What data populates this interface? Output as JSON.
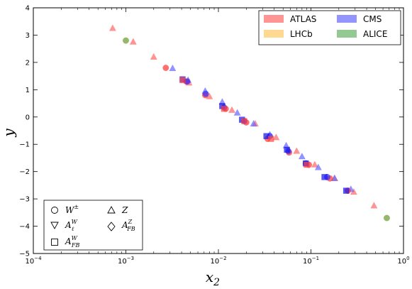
{
  "chart_data": {
    "type": "scatter",
    "xlabel": "x",
    "xlabel_sub": "2",
    "ylabel": "y",
    "xscale": "log",
    "xlim": [
      0.0001,
      1
    ],
    "ylim": [
      -5,
      4
    ],
    "yticks": [
      "−5",
      "−4",
      "−3",
      "−2",
      "−1",
      "0",
      "1",
      "2",
      "3",
      "4"
    ],
    "xticks": [
      {
        "base": "10",
        "exp": "−4"
      },
      {
        "base": "10",
        "exp": "−3"
      },
      {
        "base": "10",
        "exp": "−2"
      },
      {
        "base": "10",
        "exp": "−1"
      },
      {
        "base": "10",
        "exp": "0"
      }
    ],
    "grid": false,
    "experiments_legend": {
      "placement": "top-right",
      "entries": [
        {
          "label": "ATLAS",
          "color": "#ff6666"
        },
        {
          "label": "CMS",
          "color": "#6666ff"
        },
        {
          "label": "LHCb",
          "color": "#ffd27f"
        },
        {
          "label": "ALICE",
          "color": "#66b266"
        }
      ]
    },
    "observables_legend": {
      "placement": "bottom-left",
      "entries": [
        {
          "marker": "circle",
          "text": "W",
          "sup": "±",
          "sub": ""
        },
        {
          "marker": "triangle-up",
          "text": "Z",
          "sup": "",
          "sub": ""
        },
        {
          "marker": "triangle-down",
          "text": "A",
          "sup": "W",
          "sub": "ℓ"
        },
        {
          "marker": "diamond",
          "text": "A",
          "sup": "Z",
          "sub": "FB"
        },
        {
          "marker": "square",
          "text": "A",
          "sup": "W",
          "sub": "FB"
        }
      ]
    },
    "series": [
      {
        "experiment": "ATLAS",
        "marker": "triangle-up",
        "color": "#ff6666",
        "points": [
          [
            0.00072,
            3.25
          ],
          [
            0.0012,
            2.75
          ],
          [
            0.002,
            2.2
          ],
          [
            0.0048,
            1.25
          ],
          [
            0.008,
            0.75
          ],
          [
            0.014,
            0.25
          ],
          [
            0.025,
            -0.25
          ],
          [
            0.042,
            -0.75
          ],
          [
            0.07,
            -1.25
          ],
          [
            0.11,
            -1.75
          ],
          [
            0.18,
            -2.25
          ],
          [
            0.29,
            -2.75
          ],
          [
            0.48,
            -3.25
          ]
        ]
      },
      {
        "experiment": "CMS",
        "marker": "triangle-up",
        "color": "#6666ff",
        "points": [
          [
            0.0032,
            1.78
          ],
          [
            0.0047,
            1.35
          ],
          [
            0.0072,
            0.95
          ],
          [
            0.011,
            0.55
          ],
          [
            0.016,
            0.15
          ],
          [
            0.024,
            -0.25
          ],
          [
            0.036,
            -0.65
          ],
          [
            0.054,
            -1.05
          ],
          [
            0.08,
            -1.45
          ],
          [
            0.12,
            -1.85
          ],
          [
            0.18,
            -2.25
          ],
          [
            0.27,
            -2.65
          ]
        ]
      },
      {
        "experiment": "ATLAS",
        "marker": "circle",
        "color": "#ff3333",
        "points": [
          [
            0.0027,
            1.8
          ],
          [
            0.0045,
            1.3
          ],
          [
            0.0072,
            0.8
          ],
          [
            0.012,
            0.3
          ],
          [
            0.02,
            -0.2
          ],
          [
            0.034,
            -0.8
          ],
          [
            0.058,
            -1.3
          ],
          [
            0.095,
            -1.75
          ],
          [
            0.16,
            -2.25
          ],
          [
            0.25,
            -2.7
          ]
        ]
      },
      {
        "experiment": "CMS",
        "marker": "circle",
        "color": "#3333ff",
        "points": [
          [
            0.0046,
            1.3
          ],
          [
            0.0073,
            0.85
          ],
          [
            0.0115,
            0.35
          ],
          [
            0.019,
            -0.15
          ],
          [
            0.036,
            -0.7
          ],
          [
            0.057,
            -1.25
          ],
          [
            0.088,
            -1.7
          ],
          [
            0.15,
            -2.2
          ]
        ]
      },
      {
        "experiment": "CMS",
        "marker": "square",
        "color": "#1111ee",
        "points": [
          [
            0.0041,
            1.38
          ],
          [
            0.011,
            0.4
          ],
          [
            0.018,
            -0.1
          ],
          [
            0.033,
            -0.7
          ],
          [
            0.055,
            -1.2
          ],
          [
            0.088,
            -1.7
          ],
          [
            0.14,
            -2.2
          ],
          [
            0.24,
            -2.7
          ]
        ]
      },
      {
        "experiment": "ATLAS",
        "marker": "square",
        "color": "#ff4444",
        "points": [
          [
            0.0041,
            1.35
          ],
          [
            0.0115,
            0.3
          ],
          [
            0.019,
            -0.15
          ],
          [
            0.037,
            -0.8
          ],
          [
            0.09,
            -1.75
          ]
        ]
      },
      {
        "experiment": "LHCb",
        "marker": "circle",
        "color": "#ffb347",
        "points": [
          [
            0.001,
            2.8
          ],
          [
            0.66,
            -3.7
          ]
        ]
      },
      {
        "experiment": "ALICE",
        "marker": "circle",
        "color": "#66b266",
        "points": [
          [
            0.001,
            2.8
          ],
          [
            0.66,
            -3.7
          ]
        ]
      }
    ]
  }
}
